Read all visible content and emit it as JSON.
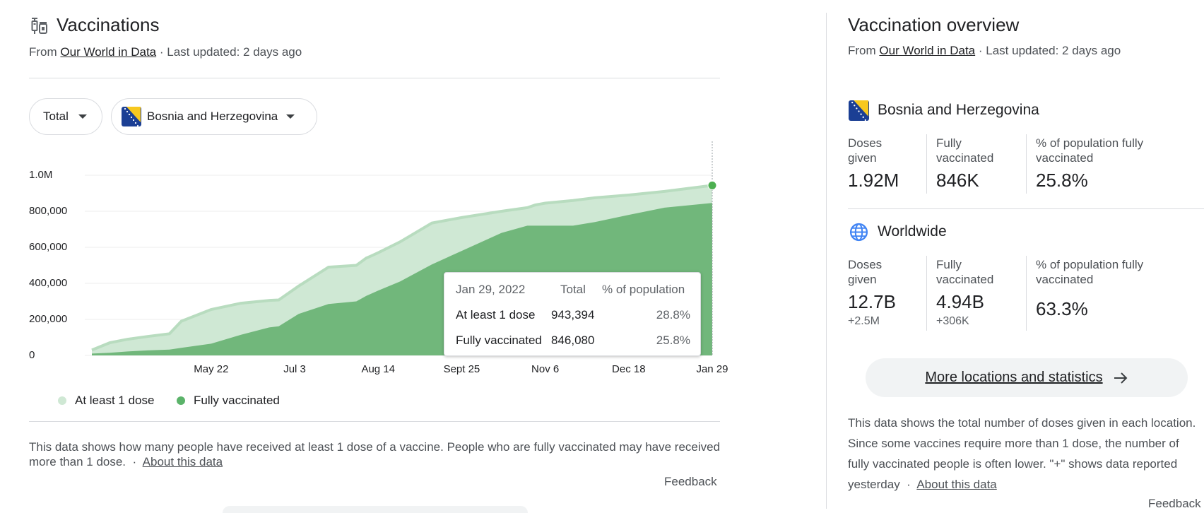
{
  "left": {
    "title": "Vaccinations",
    "source_prefix": "From",
    "source_link": "Our World in Data",
    "source_suffix": "· Last updated: 2 days ago",
    "filters": {
      "metric": "Total",
      "location": "Bosnia and Herzegovina"
    },
    "legend": {
      "first": "At least 1 dose",
      "second": "Fully vaccinated"
    },
    "tooltip": {
      "date": "Jan 29, 2022",
      "col_total": "Total",
      "col_pct": "% of population",
      "row1_label": "At least 1 dose",
      "row1_total": "943,394",
      "row1_pct": "28.8%",
      "row2_label": "Fully vaccinated",
      "row2_total": "846,080",
      "row2_pct": "25.8%"
    },
    "description": "This data shows how many people have received at least 1 dose of a vaccine. People who are fully vaccinated may have received more than 1 dose.",
    "about_sep": "·",
    "about_link": "About this data",
    "feedback": "Feedback"
  },
  "chart_data": {
    "type": "area",
    "y_tick_labels": [
      "0",
      "200,000",
      "400,000",
      "600,000",
      "800,000",
      "1.0M"
    ],
    "ylim": [
      0,
      1000000
    ],
    "x_tick_labels": [
      "May 22",
      "Jul 3",
      "Aug 14",
      "Sept 25",
      "Nov 6",
      "Dec 18",
      "Jan 29"
    ],
    "x_dates": [
      "2021-03-23",
      "2021-04-01",
      "2021-04-10",
      "2021-04-20",
      "2021-05-01",
      "2021-05-07",
      "2021-05-22",
      "2021-06-06",
      "2021-06-20",
      "2021-06-25",
      "2021-07-05",
      "2021-07-20",
      "2021-08-03",
      "2021-08-08",
      "2021-08-10",
      "2021-08-14",
      "2021-08-25",
      "2021-09-10",
      "2021-09-25",
      "2021-10-15",
      "2021-10-28",
      "2021-11-01",
      "2021-11-06",
      "2021-11-20",
      "2021-12-01",
      "2021-12-18",
      "2022-01-05",
      "2022-01-29"
    ],
    "series": [
      {
        "name": "At least 1 dose",
        "color": "#cfe8d4",
        "values": [
          30000,
          70000,
          90000,
          105000,
          120000,
          190000,
          255000,
          290000,
          305000,
          308000,
          385000,
          490000,
          500000,
          540000,
          550000,
          570000,
          630000,
          735000,
          765000,
          800000,
          820000,
          835000,
          845000,
          860000,
          875000,
          890000,
          910000,
          943394
        ]
      },
      {
        "name": "Fully vaccinated",
        "color": "#71b77b",
        "values": [
          10000,
          15000,
          22000,
          28000,
          32000,
          42000,
          65000,
          115000,
          155000,
          162000,
          230000,
          285000,
          300000,
          330000,
          340000,
          360000,
          410000,
          505000,
          580000,
          680000,
          720000,
          720000,
          720000,
          720000,
          740000,
          780000,
          820000,
          846080
        ]
      }
    ]
  },
  "right": {
    "title": "Vaccination overview",
    "source_prefix": "From",
    "source_link": "Our World in Data",
    "source_suffix": "· Last updated: 2 days ago",
    "country": {
      "name": "Bosnia and Herzegovina",
      "doses_label": "Doses given",
      "doses_value": "1.92M",
      "fully_label": "Fully vaccinated",
      "fully_value": "846K",
      "pct_label": "% of population fully vaccinated",
      "pct_value": "25.8%"
    },
    "world": {
      "name": "Worldwide",
      "doses_label": "Doses given",
      "doses_value": "12.7B",
      "doses_sub": "+2.5M",
      "fully_label": "Fully vaccinated",
      "fully_value": "4.94B",
      "fully_sub": "+306K",
      "pct_label": "% of population fully vaccinated",
      "pct_value": "63.3%"
    },
    "more_button": "More locations and statistics",
    "description": "This data shows the total number of doses given in each location. Since some vaccines require more than 1 dose, the number of fully vaccinated people is often lower. \"+\" shows data reported yesterday",
    "about_sep": "·",
    "about_link": "About this data",
    "feedback": "Feedback"
  },
  "icons": {
    "vaccine": "syringe-icon",
    "flag": "bosnia-flag-icon",
    "globe": "globe-icon",
    "arrow": "arrow-right-icon",
    "caret": "caret-down-icon"
  },
  "colors": {
    "accent_green": "#4caf50",
    "area_light": "#cfe8d4",
    "area_dark": "#71b77b",
    "globe_blue": "#4285f4"
  }
}
